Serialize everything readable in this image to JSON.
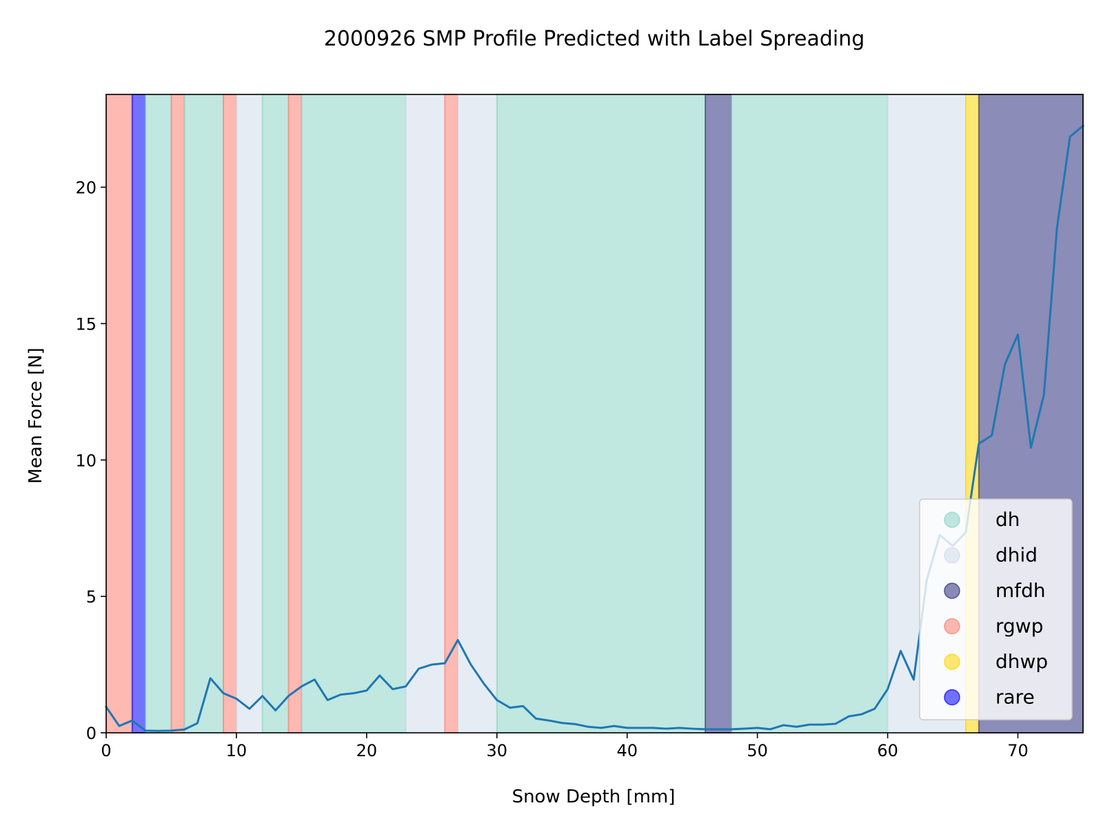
{
  "chart_data": {
    "type": "line",
    "title": "2000926 SMP Profile Predicted with Label Spreading",
    "xlabel": "Snow Depth [mm]",
    "ylabel": "Mean Force [N]",
    "xlim": [
      0,
      75
    ],
    "ylim": [
      0,
      23.4
    ],
    "xticks": [
      0,
      10,
      20,
      30,
      40,
      50,
      60,
      70
    ],
    "yticks": [
      0,
      5,
      10,
      15,
      20
    ],
    "grid": false,
    "legend_position": "lower-right",
    "series": [
      {
        "color": "#1f77b4",
        "x": [
          0,
          1,
          2,
          3,
          4,
          5,
          6,
          7,
          8,
          9,
          10,
          11,
          12,
          13,
          14,
          15,
          16,
          17,
          18,
          19,
          20,
          21,
          22,
          23,
          24,
          25,
          26,
          27,
          28,
          29,
          30,
          31,
          32,
          33,
          34,
          35,
          36,
          37,
          38,
          39,
          40,
          41,
          42,
          43,
          44,
          45,
          46,
          47,
          48,
          49,
          50,
          51,
          52,
          53,
          54,
          55,
          56,
          57,
          58,
          59,
          60,
          61,
          62,
          63,
          64,
          65,
          66,
          67,
          68,
          69,
          70,
          71,
          72,
          73,
          74,
          75
        ],
        "y": [
          0.95,
          0.25,
          0.45,
          0.08,
          0.07,
          0.08,
          0.12,
          0.35,
          2.0,
          1.45,
          1.25,
          0.88,
          1.35,
          0.82,
          1.35,
          1.7,
          1.95,
          1.2,
          1.4,
          1.45,
          1.55,
          2.1,
          1.6,
          1.7,
          2.35,
          2.5,
          2.55,
          3.4,
          2.5,
          1.8,
          1.2,
          0.92,
          0.98,
          0.52,
          0.45,
          0.36,
          0.32,
          0.22,
          0.18,
          0.25,
          0.18,
          0.18,
          0.18,
          0.15,
          0.18,
          0.15,
          0.13,
          0.13,
          0.13,
          0.15,
          0.18,
          0.13,
          0.28,
          0.22,
          0.3,
          0.3,
          0.33,
          0.6,
          0.68,
          0.88,
          1.6,
          3.0,
          1.95,
          5.6,
          7.25,
          6.85,
          7.35,
          10.6,
          10.9,
          13.5,
          14.6,
          10.45,
          12.4,
          18.5,
          21.85,
          22.25
        ]
      }
    ],
    "legend": [
      {
        "label": "dh",
        "color": "#8dd3c7"
      },
      {
        "label": "dhid",
        "color": "#d2dce9"
      },
      {
        "label": "mfdh",
        "color": "#2b2d7c"
      },
      {
        "label": "rgwp",
        "color": "#fb8072"
      },
      {
        "label": "dhwp",
        "color": "#ffd500"
      },
      {
        "label": "rare",
        "color": "#0000ff"
      }
    ],
    "label_bands": [
      {
        "from": 0,
        "to": 2,
        "label": "rgwp"
      },
      {
        "from": 2,
        "to": 3,
        "label": "rare"
      },
      {
        "from": 3,
        "to": 5,
        "label": "dh"
      },
      {
        "from": 5,
        "to": 6,
        "label": "rgwp"
      },
      {
        "from": 6,
        "to": 9,
        "label": "dh"
      },
      {
        "from": 9,
        "to": 10,
        "label": "rgwp"
      },
      {
        "from": 10,
        "to": 12,
        "label": "dhid"
      },
      {
        "from": 12,
        "to": 14,
        "label": "dh"
      },
      {
        "from": 14,
        "to": 15,
        "label": "rgwp"
      },
      {
        "from": 15,
        "to": 23,
        "label": "dh"
      },
      {
        "from": 23,
        "to": 26,
        "label": "dhid"
      },
      {
        "from": 26,
        "to": 27,
        "label": "rgwp"
      },
      {
        "from": 27,
        "to": 30,
        "label": "dhid"
      },
      {
        "from": 30,
        "to": 46,
        "label": "dh"
      },
      {
        "from": 46,
        "to": 48,
        "label": "mfdh"
      },
      {
        "from": 48,
        "to": 60,
        "label": "dh"
      },
      {
        "from": 60,
        "to": 66,
        "label": "dhid"
      },
      {
        "from": 66,
        "to": 67,
        "label": "dhwp"
      },
      {
        "from": 67,
        "to": 75,
        "label": "mfdh"
      }
    ]
  }
}
